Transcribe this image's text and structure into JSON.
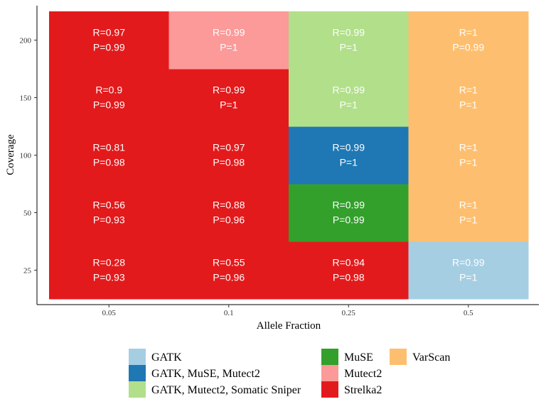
{
  "chart_data": {
    "type": "heatmap",
    "title": "",
    "xlabel": "Allele Fraction",
    "ylabel": "Coverage",
    "x_categories": [
      "0.05",
      "0.1",
      "0.25",
      "0.5"
    ],
    "y_categories": [
      "25",
      "50",
      "100",
      "150",
      "200"
    ],
    "grid": false,
    "legend_position": "bottom",
    "legend": [
      {
        "name": "GATK",
        "color": "#a6cee3"
      },
      {
        "name": "GATK, MuSE, Mutect2",
        "color": "#1f78b4"
      },
      {
        "name": "GATK, Mutect2, Somatic Sniper",
        "color": "#b2df8a"
      },
      {
        "name": "MuSE",
        "color": "#33a02c"
      },
      {
        "name": "Mutect2",
        "color": "#fb9a99"
      },
      {
        "name": "Strelka2",
        "color": "#e31a1c"
      },
      {
        "name": "VarScan",
        "color": "#fdbf6f"
      }
    ],
    "cells": [
      {
        "x": "0.05",
        "y": "25",
        "tool": "Strelka2",
        "R": "R=0.28",
        "P": "P=0.93"
      },
      {
        "x": "0.1",
        "y": "25",
        "tool": "Strelka2",
        "R": "R=0.55",
        "P": "P=0.96"
      },
      {
        "x": "0.25",
        "y": "25",
        "tool": "Strelka2",
        "R": "R=0.94",
        "P": "P=0.98"
      },
      {
        "x": "0.5",
        "y": "25",
        "tool": "GATK",
        "R": "R=0.99",
        "P": "P=1"
      },
      {
        "x": "0.05",
        "y": "50",
        "tool": "Strelka2",
        "R": "R=0.56",
        "P": "P=0.93"
      },
      {
        "x": "0.1",
        "y": "50",
        "tool": "Strelka2",
        "R": "R=0.88",
        "P": "P=0.96"
      },
      {
        "x": "0.25",
        "y": "50",
        "tool": "MuSE",
        "R": "R=0.99",
        "P": "P=0.99"
      },
      {
        "x": "0.5",
        "y": "50",
        "tool": "VarScan",
        "R": "R=1",
        "P": "P=1"
      },
      {
        "x": "0.05",
        "y": "100",
        "tool": "Strelka2",
        "R": "R=0.81",
        "P": "P=0.98"
      },
      {
        "x": "0.1",
        "y": "100",
        "tool": "Strelka2",
        "R": "R=0.97",
        "P": "P=0.98"
      },
      {
        "x": "0.25",
        "y": "100",
        "tool": "GATK, MuSE, Mutect2",
        "R": "R=0.99",
        "P": "P=1"
      },
      {
        "x": "0.5",
        "y": "100",
        "tool": "VarScan",
        "R": "R=1",
        "P": "P=1"
      },
      {
        "x": "0.05",
        "y": "150",
        "tool": "Strelka2",
        "R": "R=0.9",
        "P": "P=0.99"
      },
      {
        "x": "0.1",
        "y": "150",
        "tool": "Strelka2",
        "R": "R=0.99",
        "P": "P=1"
      },
      {
        "x": "0.25",
        "y": "150",
        "tool": "GATK, Mutect2, Somatic Sniper",
        "R": "R=0.99",
        "P": "P=1"
      },
      {
        "x": "0.5",
        "y": "150",
        "tool": "VarScan",
        "R": "R=1",
        "P": "P=1"
      },
      {
        "x": "0.05",
        "y": "200",
        "tool": "Strelka2",
        "R": "R=0.97",
        "P": "P=0.99"
      },
      {
        "x": "0.1",
        "y": "200",
        "tool": "Mutect2",
        "R": "R=0.99",
        "P": "P=1"
      },
      {
        "x": "0.25",
        "y": "200",
        "tool": "GATK, Mutect2, Somatic Sniper",
        "R": "R=0.99",
        "P": "P=1"
      },
      {
        "x": "0.5",
        "y": "200",
        "tool": "VarScan",
        "R": "R=1",
        "P": "P=0.99"
      }
    ]
  }
}
